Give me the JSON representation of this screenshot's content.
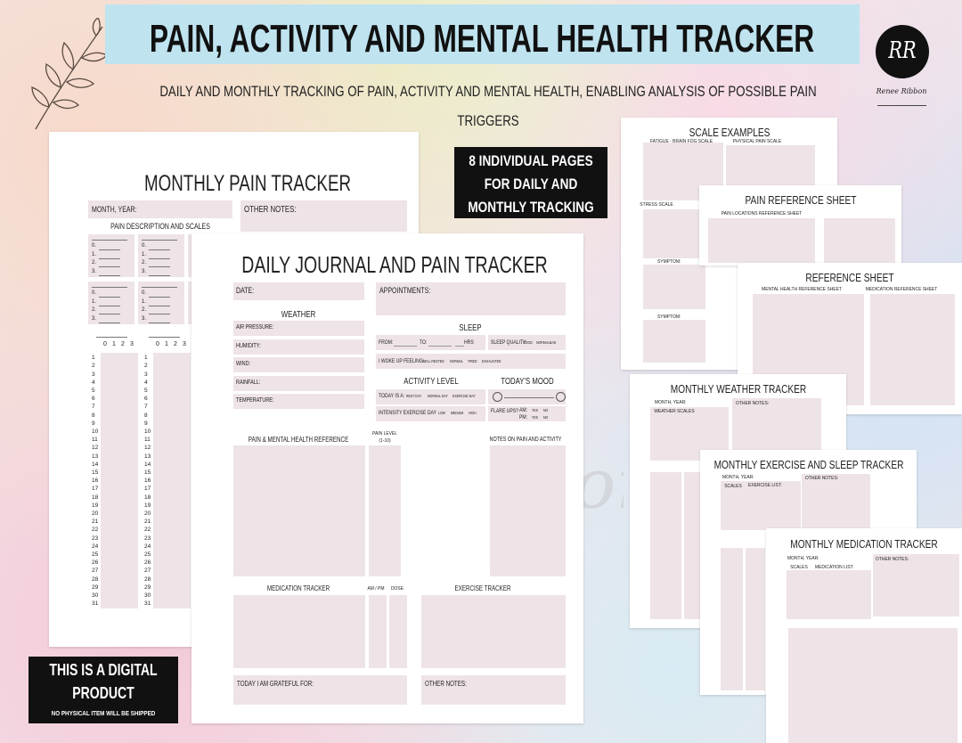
{
  "header": {
    "title": "PAIN, ACTIVITY AND MENTAL HEALTH TRACKER",
    "subtitle": [
      "DAILY AND MONTHLY TRACKING OF PAIN, ACTIVITY AND MENTAL HEALTH, ENABLING ANALYSIS OF POSSIBLE PAIN",
      "TRIGGERS"
    ]
  },
  "logo": {
    "initials": "RR",
    "name": "Renee Ribbon"
  },
  "badge": [
    "8 INDIVIDUAL PAGES",
    "FOR DAILY AND",
    "MONTHLY TRACKING"
  ],
  "notice": {
    "title": [
      "THIS IS A DIGITAL",
      "PRODUCT"
    ],
    "note": "NO PHYSICAL ITEM WILL BE SHIPPED"
  },
  "monthly_pain": {
    "title": "MONTHLY PAIN TRACKER",
    "month_year": "MONTH, YEAR:",
    "other_notes": "OTHER NOTES:",
    "scales_heading": "PAIN DESCRIPTION AND SCALES",
    "scale_levels": [
      "0.",
      "1.",
      "2.",
      "3."
    ],
    "scale_columns": [
      0,
      1,
      2,
      3
    ],
    "days": [
      1,
      2,
      3,
      4,
      5,
      6,
      7,
      8,
      9,
      10,
      11,
      12,
      13,
      14,
      15,
      16,
      17,
      18,
      19,
      20,
      21,
      22,
      23,
      24,
      25,
      26,
      27,
      28,
      29,
      30,
      31
    ]
  },
  "daily_journal": {
    "title": "DAILY JOURNAL AND PAIN TRACKER",
    "date": "DATE:",
    "appointments": "APPOINTMENTS:",
    "weather": {
      "heading": "WEATHER",
      "fields": [
        "AIR PRESSURE:",
        "HUMIDITY:",
        "WIND:",
        "RAINFALL:",
        "TEMPERATURE:"
      ]
    },
    "sleep": {
      "heading": "SLEEP",
      "from": "FROM:",
      "to": "TO:",
      "hrs": "HRS",
      "quality": "SLEEP QUALITY:",
      "quality_options": [
        "GOOD",
        "NORMAL",
        "BAD"
      ],
      "woke": "I WOKE UP FEELING:",
      "woke_options": [
        "WELL RESTED",
        "NORMAL",
        "TIRED",
        "EXHAUSTED"
      ]
    },
    "activity": {
      "heading": "ACTIVITY LEVEL",
      "today": "TODAY IS A:",
      "today_options": [
        "REST DAY",
        "NORMAL DAY",
        "EXERCISE DAY"
      ],
      "intensity": "INTENSITY EXERCISE DAY",
      "intensity_options": [
        "LOW",
        "MEDIUM",
        "HIGH"
      ]
    },
    "mood": {
      "heading": "TODAY'S MOOD",
      "flare": "FLARE UPS?",
      "am": "AM:",
      "pm": "PM:",
      "options": [
        "YES",
        "NO"
      ]
    },
    "reference": "PAIN & MENTAL HEALTH REFERENCE",
    "pain_level": [
      "PAIN LEVEL",
      "(1-10)"
    ],
    "notes": "NOTES ON PAIN AND ACTIVITY",
    "medication": "MEDICATION TRACKER",
    "am_pm": "AM / PM",
    "dose": "DOSE",
    "exercise": "EXERCISE TRACKER",
    "grateful": "TODAY I AM GRATEFUL FOR:",
    "other_notes": "OTHER NOTES:"
  },
  "watermark": "Renee Ribbon",
  "pages": [
    {
      "title": "SCALE EXAMPLES",
      "labels": [
        "FATIGUE - BRAIN FOG SCALE",
        "PHYSICAL PAIN SCALE",
        "STRESS SCALE",
        "SYMPTOM:",
        "SYMPTOM:"
      ]
    },
    {
      "title": "PAIN REFERENCE SHEET",
      "labels": [
        "PAIN LOCATIONS REFERENCE SHEET"
      ]
    },
    {
      "title": "REFERENCE SHEET",
      "labels": [
        "MENTAL HEALTH REFERENCE SHEET",
        "MEDICATION REFERENCE SHEET"
      ]
    },
    {
      "title": "MONTHLY WEATHER TRACKER",
      "labels": [
        "MONTH, YEAR:",
        "OTHER NOTES:",
        "WEATHER SCALES"
      ]
    },
    {
      "title": "MONTHLY EXERCISE AND SLEEP TRACKER",
      "labels": [
        "MONTH, YEAR:",
        "OTHER NOTES:",
        "SCALES",
        "EXERCISE LIST:"
      ]
    },
    {
      "title": "MONTHLY MEDICATION TRACKER",
      "labels": [
        "MONTH, YEAR:",
        "OTHER NOTES:",
        "SCALES",
        "MEDICATION LIST:"
      ]
    }
  ]
}
